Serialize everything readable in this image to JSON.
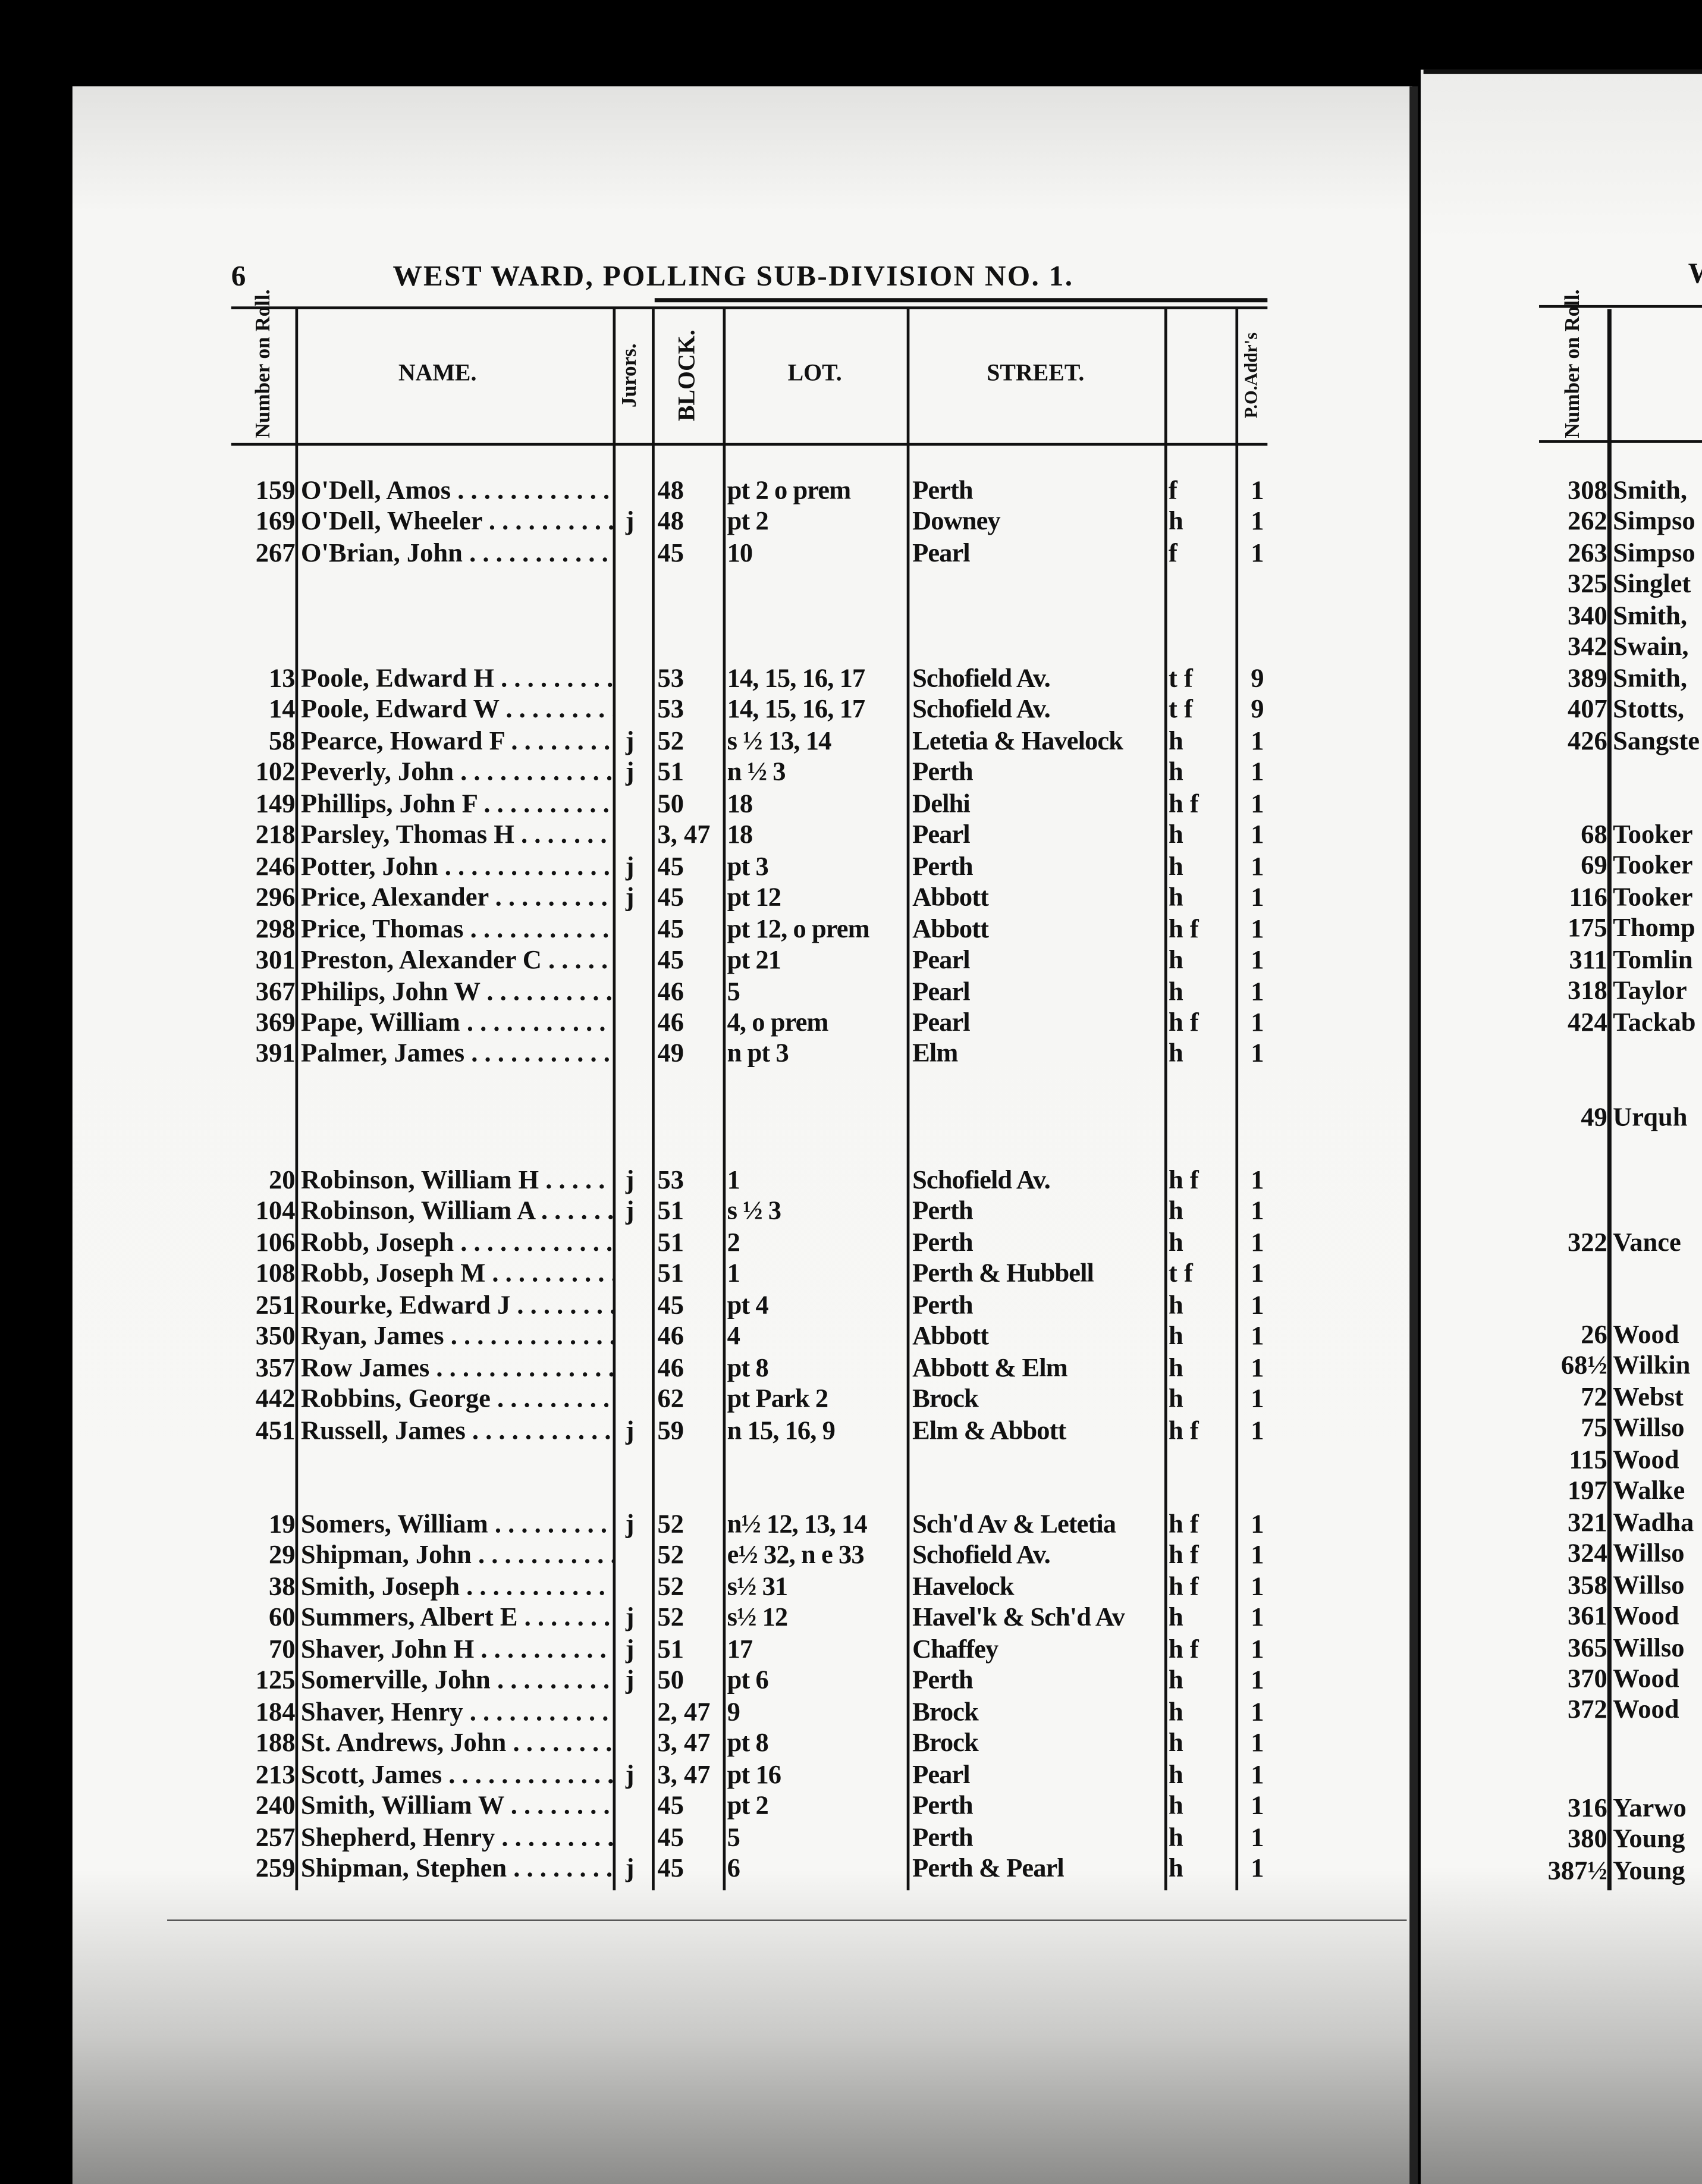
{
  "left_page": {
    "page_number": "6",
    "title": "WEST WARD, POLLING SUB-DIVISION NO. 1.",
    "headers": {
      "number": "Number on Roll.",
      "name": "NAME.",
      "jurors": "Jurors.",
      "block": "BLOCK.",
      "lot": "LOT.",
      "street": "STREET.",
      "residence": "",
      "po": "P.O.Addr's"
    },
    "sections": [
      [
        {
          "num": "159",
          "name": "O'Dell, Amos",
          "juror": "",
          "block": "48",
          "lot": "pt 2 o prem",
          "street": "Perth",
          "res": "f",
          "po": "1"
        },
        {
          "num": "169",
          "name": "O'Dell, Wheeler",
          "juror": "j",
          "block": "48",
          "lot": "pt 2",
          "street": "Downey",
          "res": "h",
          "po": "1"
        },
        {
          "num": "267",
          "name": "O'Brian, John",
          "juror": "",
          "block": "45",
          "lot": "10",
          "street": "Pearl",
          "res": "f",
          "po": "1"
        }
      ],
      [
        {
          "num": "13",
          "name": "Poole, Edward H",
          "juror": "",
          "block": "53",
          "lot": "14, 15, 16, 17",
          "street": "Schofield Av.",
          "res": "t f",
          "po": "9"
        },
        {
          "num": "14",
          "name": "Poole, Edward W",
          "juror": "",
          "block": "53",
          "lot": "14, 15, 16, 17",
          "street": "Schofield Av.",
          "res": "t f",
          "po": "9"
        },
        {
          "num": "58",
          "name": "Pearce, Howard F",
          "juror": "j",
          "block": "52",
          "lot": "s ½ 13, 14",
          "street": "Letetia & Havelock",
          "res": "h",
          "po": "1"
        },
        {
          "num": "102",
          "name": "Peverly, John",
          "juror": "j",
          "block": "51",
          "lot": "n ½ 3",
          "street": "Perth",
          "res": "h",
          "po": "1"
        },
        {
          "num": "149",
          "name": "Phillips, John F",
          "juror": "",
          "block": "50",
          "lot": "18",
          "street": "Delhi",
          "res": "h f",
          "po": "1"
        },
        {
          "num": "218",
          "name": "Parsley, Thomas H",
          "juror": "",
          "block": "3, 47",
          "lot": "18",
          "street": "Pearl",
          "res": "h",
          "po": "1"
        },
        {
          "num": "246",
          "name": "Potter, John",
          "juror": "j",
          "block": "45",
          "lot": "pt 3",
          "street": "Perth",
          "res": "h",
          "po": "1"
        },
        {
          "num": "296",
          "name": "Price, Alexander",
          "juror": "j",
          "block": "45",
          "lot": "pt 12",
          "street": "Abbott",
          "res": "h",
          "po": "1"
        },
        {
          "num": "298",
          "name": "Price, Thomas",
          "juror": "",
          "block": "45",
          "lot": "pt 12, o prem",
          "street": "Abbott",
          "res": "h f",
          "po": "1"
        },
        {
          "num": "301",
          "name": "Preston, Alexander C",
          "juror": "",
          "block": "45",
          "lot": "pt 21",
          "street": "Pearl",
          "res": "h",
          "po": "1"
        },
        {
          "num": "367",
          "name": "Philips, John W",
          "juror": "",
          "block": "46",
          "lot": "5",
          "street": "Pearl",
          "res": "h",
          "po": "1"
        },
        {
          "num": "369",
          "name": "Pape, William",
          "juror": "",
          "block": "46",
          "lot": "4, o prem",
          "street": "Pearl",
          "res": "h f",
          "po": "1"
        },
        {
          "num": "391",
          "name": "Palmer, James",
          "juror": "",
          "block": "49",
          "lot": "n pt 3",
          "street": "Elm",
          "res": "h",
          "po": "1"
        }
      ],
      [
        {
          "num": "20",
          "name": "Robinson, William H",
          "juror": "j",
          "block": "53",
          "lot": "1",
          "street": "Schofield Av.",
          "res": "h f",
          "po": "1"
        },
        {
          "num": "104",
          "name": "Robinson, William A",
          "juror": "j",
          "block": "51",
          "lot": "s ½ 3",
          "street": "Perth",
          "res": "h",
          "po": "1"
        },
        {
          "num": "106",
          "name": "Robb, Joseph",
          "juror": "",
          "block": "51",
          "lot": "2",
          "street": "Perth",
          "res": "h",
          "po": "1"
        },
        {
          "num": "108",
          "name": "Robb, Joseph M",
          "juror": "",
          "block": "51",
          "lot": "1",
          "street": "Perth & Hubbell",
          "res": "t f",
          "po": "1"
        },
        {
          "num": "251",
          "name": "Rourke, Edward J",
          "juror": "",
          "block": "45",
          "lot": "pt 4",
          "street": "Perth",
          "res": "h",
          "po": "1"
        },
        {
          "num": "350",
          "name": "Ryan, James",
          "juror": "",
          "block": "46",
          "lot": "4",
          "street": "Abbott",
          "res": "h",
          "po": "1"
        },
        {
          "num": "357",
          "name": "Row James",
          "juror": "",
          "block": "46",
          "lot": "pt 8",
          "street": "Abbott & Elm",
          "res": "h",
          "po": "1"
        },
        {
          "num": "442",
          "name": "Robbins, George",
          "juror": "",
          "block": "62",
          "lot": "pt Park 2",
          "street": "Brock",
          "res": "h",
          "po": "1"
        },
        {
          "num": "451",
          "name": "Russell, James",
          "juror": "j",
          "block": "59",
          "lot": "n 15, 16, 9",
          "street": "Elm & Abbott",
          "res": "h f",
          "po": "1"
        }
      ],
      [
        {
          "num": "19",
          "name": "Somers, William",
          "juror": "j",
          "block": "52",
          "lot": "n½ 12, 13, 14",
          "street": "Sch'd Av & Letetia",
          "res": "h f",
          "po": "1"
        },
        {
          "num": "29",
          "name": "Shipman, John",
          "juror": "",
          "block": "52",
          "lot": "e½ 32, n e 33",
          "street": "Schofield Av.",
          "res": "h f",
          "po": "1"
        },
        {
          "num": "38",
          "name": "Smith, Joseph",
          "juror": "",
          "block": "52",
          "lot": "s½ 31",
          "street": "Havelock",
          "res": "h f",
          "po": "1"
        },
        {
          "num": "60",
          "name": "Summers, Albert E",
          "juror": "j",
          "block": "52",
          "lot": "s½ 12",
          "street": "Havel'k & Sch'd Av",
          "res": "h",
          "po": "1"
        },
        {
          "num": "70",
          "name": "Shaver, John H",
          "juror": "j",
          "block": "51",
          "lot": "17",
          "street": "Chaffey",
          "res": "h f",
          "po": "1"
        },
        {
          "num": "125",
          "name": "Somerville, John",
          "juror": "j",
          "block": "50",
          "lot": "pt 6",
          "street": "Perth",
          "res": "h",
          "po": "1"
        },
        {
          "num": "184",
          "name": "Shaver, Henry",
          "juror": "",
          "block": "2, 47",
          "lot": "9",
          "street": "Brock",
          "res": "h",
          "po": "1"
        },
        {
          "num": "188",
          "name": "St. Andrews, John",
          "juror": "",
          "block": "3, 47",
          "lot": "pt 8",
          "street": "Brock",
          "res": "h",
          "po": "1"
        },
        {
          "num": "213",
          "name": "Scott, James",
          "juror": "j",
          "block": "3, 47",
          "lot": "pt 16",
          "street": "Pearl",
          "res": "h",
          "po": "1"
        },
        {
          "num": "240",
          "name": "Smith, William W",
          "juror": "",
          "block": "45",
          "lot": "pt 2",
          "street": "Perth",
          "res": "h",
          "po": "1"
        },
        {
          "num": "257",
          "name": "Shepherd, Henry",
          "juror": "",
          "block": "45",
          "lot": "5",
          "street": "Perth",
          "res": "h",
          "po": "1"
        },
        {
          "num": "259",
          "name": "Shipman, Stephen",
          "juror": "j",
          "block": "45",
          "lot": "6",
          "street": "Perth & Pearl",
          "res": "h",
          "po": "1"
        }
      ]
    ]
  },
  "right_page": {
    "title_fragment": "W",
    "headers": {
      "number": "Number on Roll."
    },
    "sections": [
      [
        {
          "num": "308",
          "name": "Smith,"
        },
        {
          "num": "262",
          "name": "Simpso"
        },
        {
          "num": "263",
          "name": "Simpso"
        },
        {
          "num": "325",
          "name": "Singlet"
        },
        {
          "num": "340",
          "name": "Smith,"
        },
        {
          "num": "342",
          "name": "Swain,"
        },
        {
          "num": "389",
          "name": "Smith,"
        },
        {
          "num": "407",
          "name": "Stotts,"
        },
        {
          "num": "426",
          "name": "Sangste"
        }
      ],
      [
        {
          "num": "68",
          "name": "Tooker"
        },
        {
          "num": "69",
          "name": "Tooker"
        },
        {
          "num": "116",
          "name": "Tooker"
        },
        {
          "num": "175",
          "name": "Thomp"
        },
        {
          "num": "311",
          "name": "Tomlin"
        },
        {
          "num": "318",
          "name": "Taylor"
        },
        {
          "num": "424",
          "name": "Tackab"
        }
      ],
      [
        {
          "num": "49",
          "name": "Urquh"
        }
      ],
      [
        {
          "num": "322",
          "name": "Vance"
        }
      ],
      [
        {
          "num": "26",
          "name": "Wood"
        },
        {
          "num": "68½",
          "name": "Wilkin"
        },
        {
          "num": "72",
          "name": "Webst"
        },
        {
          "num": "75",
          "name": "Willso"
        },
        {
          "num": "115",
          "name": "Wood"
        },
        {
          "num": "197",
          "name": "Walke"
        },
        {
          "num": "321",
          "name": "Wadha"
        },
        {
          "num": "324",
          "name": "Willso"
        },
        {
          "num": "358",
          "name": "Willso"
        },
        {
          "num": "361",
          "name": "Wood"
        },
        {
          "num": "365",
          "name": "Willso"
        },
        {
          "num": "370",
          "name": "Wood"
        },
        {
          "num": "372",
          "name": "Wood"
        }
      ],
      [
        {
          "num": "316",
          "name": "Yarwo"
        },
        {
          "num": "380",
          "name": "Young"
        },
        {
          "num": "387½",
          "name": "Young"
        }
      ]
    ]
  }
}
